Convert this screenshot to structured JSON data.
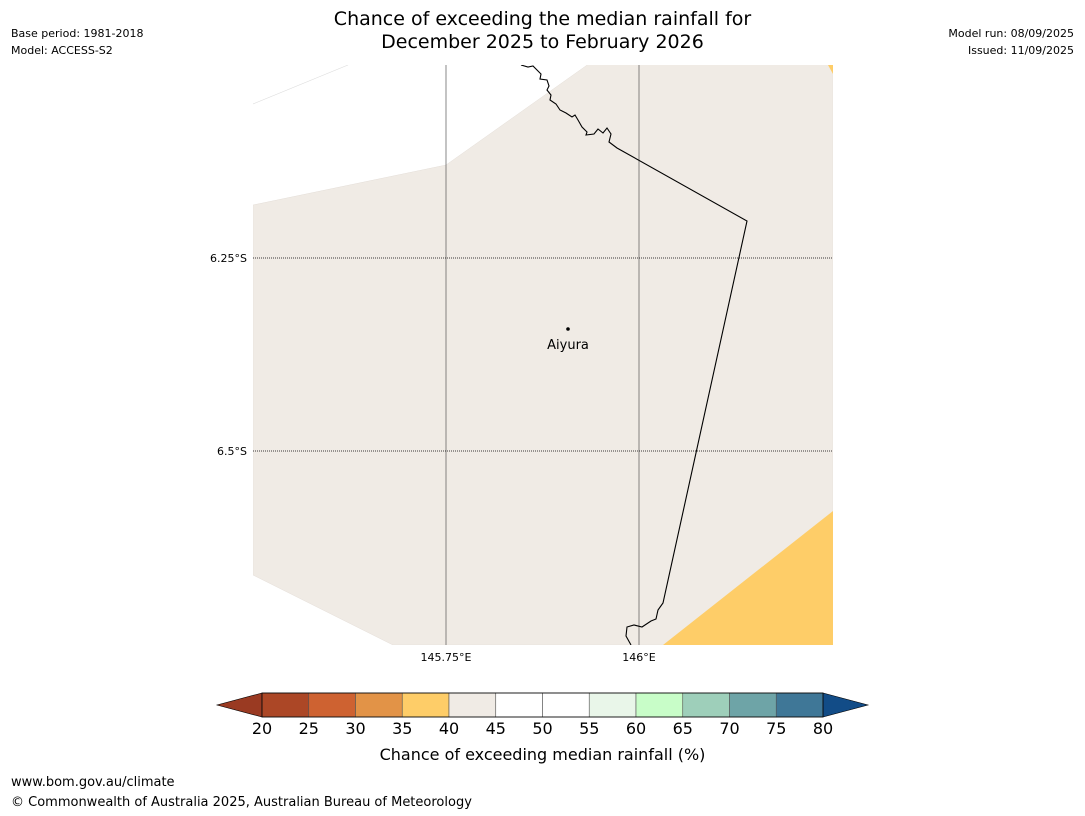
{
  "header": {
    "title_line1": "Chance of exceeding the median rainfall for",
    "title_line2": "December 2025 to February 2026",
    "base_period": "Base period: 1981-2018",
    "model": "Model: ACCESS-S2",
    "model_run": "Model run: 08/09/2025",
    "issued": "Issued: 11/09/2025"
  },
  "map": {
    "latitude_labels": [
      "6.25°S",
      "6.5°S"
    ],
    "longitude_labels": [
      "145.75°E",
      "146°E"
    ],
    "place": {
      "name": "Aiyura"
    },
    "colors": {
      "land_40_45": "#f0ebe5",
      "band_35_40": "#fecd68",
      "border": "#000000",
      "gridline": "#000000"
    }
  },
  "colorbar": {
    "ticks": [
      "20",
      "25",
      "30",
      "35",
      "40",
      "45",
      "50",
      "55",
      "60",
      "65",
      "70",
      "75",
      "80"
    ],
    "colors": [
      "#ac4726",
      "#ce6231",
      "#e29347",
      "#fecd68",
      "#f0ebe5",
      "#ffffff",
      "#ffffff",
      "#e9f6e9",
      "#c8fdc8",
      "#9ecfba",
      "#6ea4a7",
      "#3f7797"
    ],
    "under_color": "#9a3a22",
    "over_color": "#124c87",
    "label": "Chance of exceeding median rainfall (%)"
  },
  "footer": {
    "url": "www.bom.gov.au/climate",
    "copyright": "© Commonwealth of Australia 2025, Australian Bureau of Meteorology"
  }
}
